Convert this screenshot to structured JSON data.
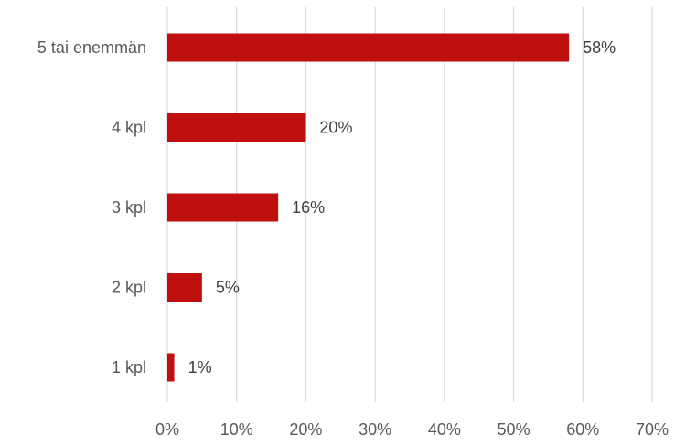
{
  "chart_data": {
    "type": "bar",
    "orientation": "horizontal",
    "categories": [
      "5 tai enemmän",
      "4 kpl",
      "3 kpl",
      "2 kpl",
      "1 kpl"
    ],
    "values": [
      58,
      20,
      16,
      5,
      1
    ],
    "data_labels": [
      "58%",
      "20%",
      "16%",
      "5%",
      "1%"
    ],
    "x_ticks": [
      0,
      10,
      20,
      30,
      40,
      50,
      60,
      70
    ],
    "x_tick_labels": [
      "0%",
      "10%",
      "20%",
      "30%",
      "40%",
      "50%",
      "60%",
      "70%"
    ],
    "xlim": [
      0,
      70
    ],
    "title": "",
    "xlabel": "",
    "ylabel": "",
    "grid": "vertical",
    "legend": "none",
    "bar_color": "#c00f0f"
  }
}
